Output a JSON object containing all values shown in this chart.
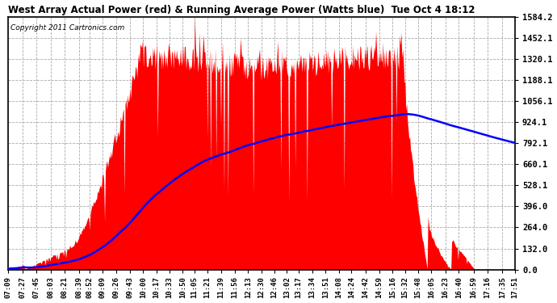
{
  "title": "West Array Actual Power (red) & Running Average Power (Watts blue)  Tue Oct 4 18:12",
  "copyright": "Copyright 2011 Cartronics.com",
  "background_color": "#ffffff",
  "plot_bg_color": "#ffffff",
  "y_ticks": [
    0.0,
    132.0,
    264.0,
    396.0,
    528.1,
    660.1,
    792.1,
    924.1,
    1056.1,
    1188.1,
    1320.1,
    1452.1,
    1584.2
  ],
  "ymax": 1584.2,
  "ymin": 0.0,
  "red_color": "#ff0000",
  "blue_color": "#0000ff",
  "grid_color": "#aaaaaa",
  "x_labels": [
    "07:09",
    "07:27",
    "07:45",
    "08:03",
    "08:21",
    "08:39",
    "08:52",
    "09:09",
    "09:26",
    "09:43",
    "10:00",
    "10:17",
    "10:33",
    "10:50",
    "11:05",
    "11:21",
    "11:39",
    "11:56",
    "12:13",
    "12:30",
    "12:46",
    "13:02",
    "13:17",
    "13:34",
    "13:51",
    "14:08",
    "14:24",
    "14:42",
    "14:59",
    "15:16",
    "15:32",
    "15:48",
    "16:05",
    "16:23",
    "16:40",
    "16:59",
    "17:16",
    "17:35",
    "17:51"
  ]
}
